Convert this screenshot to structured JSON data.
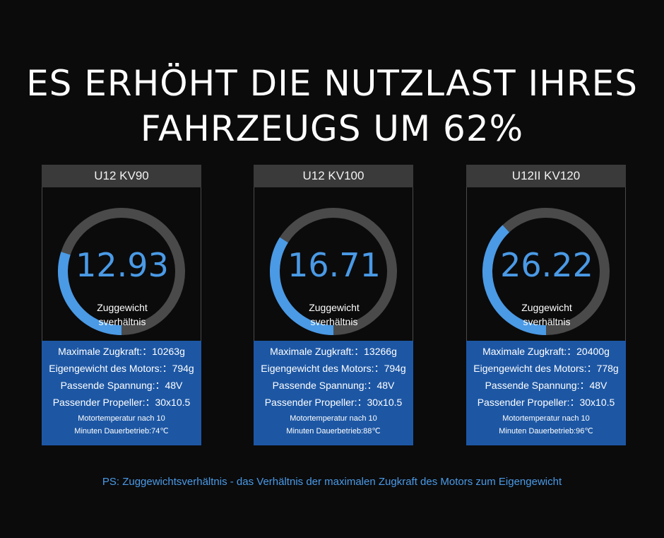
{
  "headline": {
    "line1": "ES ERHÖHT DIE NUTZLAST IHRES",
    "line2": "FAHRZEUGS UM 62%"
  },
  "colors": {
    "background": "#0b0b0c",
    "accent": "#4a9ae6",
    "ring_track": "#4a4a4a",
    "specs_bg": "#1d57a4",
    "header_bg": "#3a3a3a"
  },
  "ring_label_line1": "Zuggewicht",
  "ring_label_line2": "sverhältnis",
  "cards": [
    {
      "title": "U12   KV90",
      "ratio": "12.93",
      "ring_fill": 0.3,
      "specs": [
        "Maximale Zugkraft:：10263g",
        "Eigengewicht des Motors:：794g",
        "Passende Spannung:：48V",
        "Passender Propeller:：30x10.5"
      ],
      "note_line1": "Motortemperatur nach 10",
      "note_line2": "Minuten Dauerbetrieb:74℃"
    },
    {
      "title": "U12   KV100",
      "ratio": "16.71",
      "ring_fill": 0.34,
      "specs": [
        "Maximale Zugkraft:：13266g",
        "Eigengewicht des Motors:：794g",
        "Passende Spannung:：48V",
        "Passender Propeller:：30x10.5"
      ],
      "note_line1": "Motortemperatur nach 10",
      "note_line2": "Minuten Dauerbetrieb:88℃"
    },
    {
      "title": "U12II   KV120",
      "ratio": "26.22",
      "ring_fill": 0.38,
      "specs": [
        "Maximale Zugkraft:：20400g",
        "Eigengewicht des Motors:：778g",
        "Passende Spannung:：48V",
        "Passender Propeller:：30x10.5"
      ],
      "note_line1": "Motortemperatur nach 10",
      "note_line2": "Minuten Dauerbetrieb:96℃"
    }
  ],
  "footnote": "PS:  Zuggewichtsverhältnis - das Verhältnis der maximalen Zugkraft des Motors zum Eigengewicht"
}
